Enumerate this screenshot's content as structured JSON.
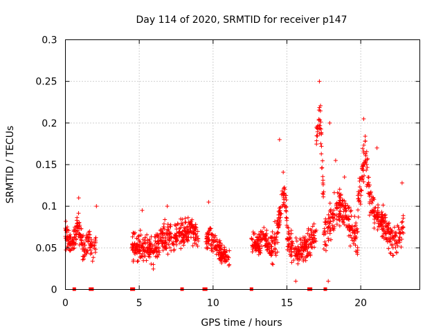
{
  "chart_data": {
    "type": "scatter",
    "title": "Day 114 of 2020, SRMTID for receiver p147",
    "xlabel": "GPS time / hours",
    "ylabel": "SRMTID / TECUs",
    "xlim": [
      0,
      24
    ],
    "ylim": [
      0,
      0.3
    ],
    "grid": true,
    "marker": "+",
    "color": "#ff0000",
    "x_ticks": [
      0,
      5,
      10,
      15,
      20
    ],
    "x_tick_labels": [
      "0",
      "5",
      "10",
      "15",
      "20"
    ],
    "y_ticks": [
      0,
      0.05,
      0.1,
      0.15,
      0.2,
      0.25,
      0.3
    ],
    "y_tick_labels": [
      "0",
      "0.05",
      "0.1",
      "0.15",
      "0.2",
      "0.25",
      "0.3"
    ],
    "zero_markers_x": [
      0.6,
      1.7,
      1.8,
      4.5,
      4.6,
      7.9,
      9.4,
      9.5,
      12.6,
      16.5,
      16.6,
      17.6
    ],
    "series": [
      {
        "name": "SRMTID",
        "segments": [
          {
            "x_start": 0.0,
            "x_end": 2.1,
            "anchors": [
              [
                0.0,
                0.065
              ],
              [
                0.2,
                0.06
              ],
              [
                0.4,
                0.055
              ],
              [
                0.6,
                0.06
              ],
              [
                0.8,
                0.08
              ],
              [
                1.0,
                0.07
              ],
              [
                1.2,
                0.05
              ],
              [
                1.4,
                0.055
              ],
              [
                1.6,
                0.06
              ],
              [
                1.8,
                0.05
              ],
              [
                2.0,
                0.048
              ],
              [
                2.1,
                0.05
              ]
            ],
            "spread": 0.022
          },
          {
            "x_start": 4.5,
            "x_end": 9.0,
            "anchors": [
              [
                4.5,
                0.05
              ],
              [
                5.0,
                0.052
              ],
              [
                5.5,
                0.048
              ],
              [
                6.0,
                0.045
              ],
              [
                6.5,
                0.06
              ],
              [
                7.0,
                0.065
              ],
              [
                7.5,
                0.062
              ],
              [
                8.0,
                0.068
              ],
              [
                8.5,
                0.07
              ],
              [
                9.0,
                0.065
              ]
            ],
            "spread": 0.024
          },
          {
            "x_start": 9.5,
            "x_end": 11.1,
            "anchors": [
              [
                9.5,
                0.06
              ],
              [
                9.8,
                0.065
              ],
              [
                10.1,
                0.055
              ],
              [
                10.4,
                0.045
              ],
              [
                10.7,
                0.04
              ],
              [
                11.1,
                0.038
              ]
            ],
            "spread": 0.02
          },
          {
            "x_start": 12.6,
            "x_end": 14.0,
            "anchors": [
              [
                12.6,
                0.055
              ],
              [
                13.0,
                0.055
              ],
              [
                13.4,
                0.06
              ],
              [
                13.7,
                0.055
              ],
              [
                14.0,
                0.05
              ]
            ],
            "spread": 0.022
          },
          {
            "x_start": 14.0,
            "x_end": 15.0,
            "anchors": [
              [
                14.0,
                0.05
              ],
              [
                14.3,
                0.065
              ],
              [
                14.6,
                0.1
              ],
              [
                14.8,
                0.12
              ],
              [
                15.0,
                0.08
              ]
            ],
            "spread": 0.03
          },
          {
            "x_start": 15.0,
            "x_end": 17.0,
            "anchors": [
              [
                15.0,
                0.06
              ],
              [
                15.4,
                0.05
              ],
              [
                15.8,
                0.045
              ],
              [
                16.2,
                0.05
              ],
              [
                16.6,
                0.06
              ],
              [
                17.0,
                0.07
              ]
            ],
            "spread": 0.025
          },
          {
            "x_start": 17.0,
            "x_end": 17.5,
            "anchors": [
              [
                17.0,
                0.18
              ],
              [
                17.25,
                0.22
              ],
              [
                17.5,
                0.1
              ]
            ],
            "spread": 0.03
          },
          {
            "x_start": 17.5,
            "x_end": 19.8,
            "anchors": [
              [
                17.5,
                0.07
              ],
              [
                18.0,
                0.08
              ],
              [
                18.5,
                0.1
              ],
              [
                19.0,
                0.09
              ],
              [
                19.5,
                0.065
              ],
              [
                19.8,
                0.06
              ]
            ],
            "spread": 0.03
          },
          {
            "x_start": 19.8,
            "x_end": 20.6,
            "anchors": [
              [
                19.8,
                0.1
              ],
              [
                20.1,
                0.14
              ],
              [
                20.3,
                0.17
              ],
              [
                20.6,
                0.11
              ]
            ],
            "spread": 0.035
          },
          {
            "x_start": 20.6,
            "x_end": 22.9,
            "anchors": [
              [
                20.6,
                0.11
              ],
              [
                21.0,
                0.09
              ],
              [
                21.5,
                0.08
              ],
              [
                22.0,
                0.06
              ],
              [
                22.5,
                0.06
              ],
              [
                22.9,
                0.08
              ]
            ],
            "spread": 0.025
          }
        ],
        "outliers": [
          [
            0.9,
            0.11
          ],
          [
            2.1,
            0.1
          ],
          [
            5.2,
            0.095
          ],
          [
            6.9,
            0.1
          ],
          [
            9.7,
            0.105
          ],
          [
            14.5,
            0.18
          ],
          [
            17.2,
            0.25
          ],
          [
            17.9,
            0.2
          ],
          [
            18.3,
            0.155
          ],
          [
            20.2,
            0.205
          ],
          [
            21.1,
            0.17
          ],
          [
            22.8,
            0.128
          ],
          [
            18.9,
            0.135
          ],
          [
            15.6,
            0.01
          ],
          [
            17.8,
            0.01
          ]
        ]
      }
    ]
  }
}
